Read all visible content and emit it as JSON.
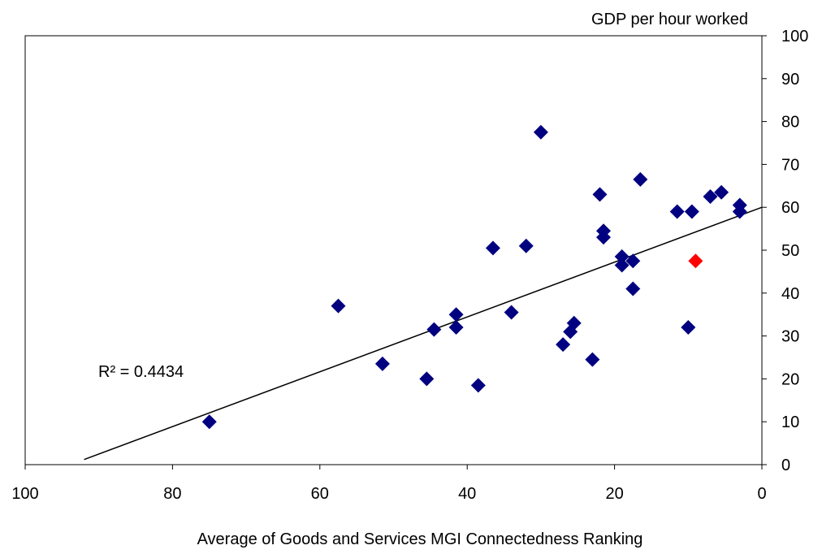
{
  "chart_data": {
    "type": "scatter",
    "title": "",
    "ylabel": "GDP per hour worked",
    "xlabel": "Average of Goods and Services MGI Connectedness Ranking",
    "x_reversed": true,
    "xlim": [
      100,
      0
    ],
    "ylim": [
      0,
      100
    ],
    "xticks": [
      100,
      80,
      60,
      40,
      20,
      0
    ],
    "yticks": [
      0,
      10,
      20,
      30,
      40,
      50,
      60,
      70,
      80,
      90,
      100
    ],
    "y_axis_side": "right",
    "grid": false,
    "legend": "none",
    "marker": "diamond",
    "series": [
      {
        "color": "#000080",
        "points": [
          {
            "x": 75.0,
            "y": 10
          },
          {
            "x": 57.5,
            "y": 37
          },
          {
            "x": 51.5,
            "y": 23.5
          },
          {
            "x": 45.5,
            "y": 20
          },
          {
            "x": 44.5,
            "y": 31.5
          },
          {
            "x": 41.5,
            "y": 35
          },
          {
            "x": 41.5,
            "y": 32
          },
          {
            "x": 38.5,
            "y": 18.5
          },
          {
            "x": 36.5,
            "y": 50.5
          },
          {
            "x": 34.0,
            "y": 35.5
          },
          {
            "x": 32.0,
            "y": 51
          },
          {
            "x": 30.0,
            "y": 77.5
          },
          {
            "x": 27.0,
            "y": 28
          },
          {
            "x": 26.0,
            "y": 31
          },
          {
            "x": 25.5,
            "y": 33
          },
          {
            "x": 23.0,
            "y": 24.5
          },
          {
            "x": 22.0,
            "y": 63
          },
          {
            "x": 21.5,
            "y": 54.5
          },
          {
            "x": 21.5,
            "y": 53
          },
          {
            "x": 19.0,
            "y": 48.5
          },
          {
            "x": 19.0,
            "y": 46.5
          },
          {
            "x": 17.5,
            "y": 47.5
          },
          {
            "x": 17.5,
            "y": 41
          },
          {
            "x": 16.5,
            "y": 66.5
          },
          {
            "x": 11.5,
            "y": 59
          },
          {
            "x": 10.0,
            "y": 32
          },
          {
            "x": 9.5,
            "y": 59
          },
          {
            "x": 7.0,
            "y": 62.5
          },
          {
            "x": 5.5,
            "y": 63.5
          },
          {
            "x": 3.0,
            "y": 60.5
          },
          {
            "x": 3.0,
            "y": 59
          }
        ]
      },
      {
        "color": "#ff0000",
        "points": [
          {
            "x": 9.0,
            "y": 47.5
          }
        ]
      }
    ],
    "trendline": {
      "type": "linear",
      "from": {
        "x": 92,
        "y": 1.2
      },
      "to": {
        "x": 0,
        "y": 60
      },
      "color": "#000000"
    },
    "annotation": "R² = 0.4434"
  }
}
